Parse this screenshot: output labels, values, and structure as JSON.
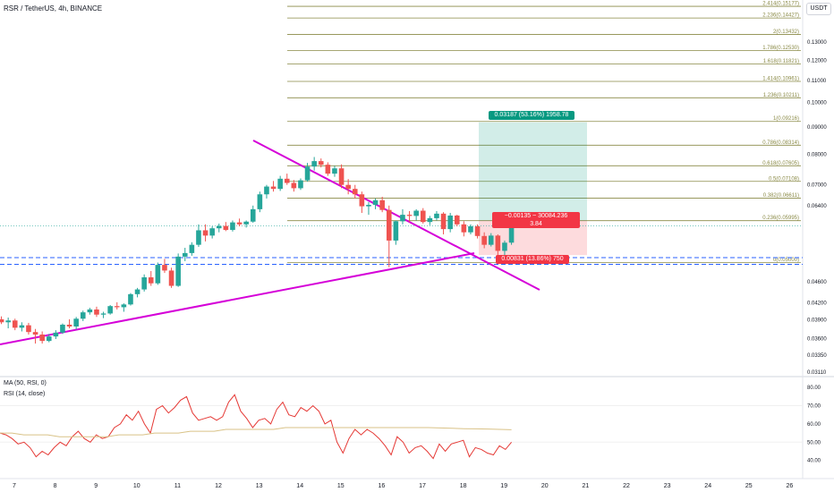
{
  "header": {
    "title": "RSR / TetherUS, 4h, BINANCE"
  },
  "currency_label": "USDT",
  "indicators": {
    "ma": "MA (50, RSI, 0)",
    "rsi": "RSI (14, close)"
  },
  "fib_levels": [
    {
      "ratio": "2.414",
      "price": "0.15177",
      "label": "2.414(0.15177)"
    },
    {
      "ratio": "2.236",
      "price": "0.14427",
      "label": "2.236(0.14427)"
    },
    {
      "ratio": "2",
      "price": "0.13432",
      "label": "2(0.13432)"
    },
    {
      "ratio": "1.786",
      "price": "0.12530",
      "label": "1.786(0.12530)"
    },
    {
      "ratio": "1.618",
      "price": "0.11821",
      "label": "1.618(0.11821)"
    },
    {
      "ratio": "1.414",
      "price": "0.10961",
      "label": "1.414(0.10961)"
    },
    {
      "ratio": "1.236",
      "price": "0.10211",
      "label": "1.236(0.10211)"
    },
    {
      "ratio": "1",
      "price": "0.09216",
      "label": "1(0.09216)"
    },
    {
      "ratio": "0.786",
      "price": "0.08314",
      "label": "0.786(0.08314)"
    },
    {
      "ratio": "0.618",
      "price": "0.07605",
      "label": "0.618(0.07605)"
    },
    {
      "ratio": "0.5",
      "price": "0.07108",
      "label": "0.5(0.07108)"
    },
    {
      "ratio": "0.382",
      "price": "0.06611",
      "label": "0.382(0.06611)"
    },
    {
      "ratio": "0.236",
      "price": "0.05995",
      "label": "0.236(0.05995)"
    },
    {
      "ratio": "0",
      "price": "0.05000",
      "label": "0(0.05000)"
    }
  ],
  "price_axis": [
    "0.13000",
    "0.12000",
    "0.11000",
    "0.10000",
    "0.09000",
    "0.08000",
    "0.07000",
    "0.06400",
    "0.04600",
    "0.04200",
    "0.03900",
    "0.03600",
    "0.03350",
    "0.03110"
  ],
  "price_tags": [
    {
      "text": "0.09182",
      "color": "#089981"
    },
    {
      "text": "0.05995",
      "color": "#131722"
    },
    {
      "text": "0.05860",
      "color": "#089981"
    },
    {
      "text": "01:04:48",
      "color": "#089981"
    },
    {
      "text": "0.05164",
      "color": "#f23645"
    },
    {
      "text": "0.05109",
      "color": "#2962ff"
    },
    {
      "text": "0.04961",
      "color": "#2962ff"
    }
  ],
  "rsi_axis": [
    "80.00",
    "70.00",
    "60.00",
    "50.00",
    "40.00"
  ],
  "time_axis": [
    "7",
    "8",
    "9",
    "10",
    "11",
    "12",
    "13",
    "14",
    "15",
    "16",
    "17",
    "18",
    "19",
    "20",
    "21",
    "22",
    "23",
    "24",
    "25",
    "26"
  ],
  "position": {
    "target_label": "0.03187 (53.16%) 1958.78",
    "stop_label": "0.00831 (13.86%) 750",
    "middle_line1": "−0.00135 ~ 30084.236",
    "middle_line2": "3.84"
  },
  "colors": {
    "up": "#26a69a",
    "down": "#ef5350",
    "trendline": "#d500d8",
    "fib": "#8a8a46",
    "rsi": "#e53935",
    "ma": "#d9c287"
  },
  "chart_data": {
    "type": "candlestick",
    "title": "RSR / TetherUS, 4h, BINANCE",
    "ohlc": [
      [
        0.0391,
        0.0396,
        0.0383,
        0.0386
      ],
      [
        0.0386,
        0.0394,
        0.0376,
        0.0389
      ],
      [
        0.0389,
        0.0392,
        0.0373,
        0.0377
      ],
      [
        0.0377,
        0.0386,
        0.0371,
        0.0381
      ],
      [
        0.0381,
        0.0385,
        0.0366,
        0.037
      ],
      [
        0.037,
        0.0375,
        0.0352,
        0.0366
      ],
      [
        0.0366,
        0.0371,
        0.0352,
        0.0356
      ],
      [
        0.0356,
        0.0367,
        0.0354,
        0.0363
      ],
      [
        0.0363,
        0.0373,
        0.0359,
        0.0369
      ],
      [
        0.0369,
        0.0384,
        0.0367,
        0.0382
      ],
      [
        0.0382,
        0.0391,
        0.0376,
        0.0379
      ],
      [
        0.0379,
        0.0395,
        0.0374,
        0.0392
      ],
      [
        0.0392,
        0.0406,
        0.0388,
        0.0403
      ],
      [
        0.0403,
        0.0411,
        0.0399,
        0.0408
      ],
      [
        0.0408,
        0.0413,
        0.0395,
        0.0399
      ],
      [
        0.0399,
        0.0404,
        0.0393,
        0.0401
      ],
      [
        0.0401,
        0.0416,
        0.0399,
        0.0414
      ],
      [
        0.0414,
        0.0421,
        0.0408,
        0.0412
      ],
      [
        0.0412,
        0.0419,
        0.0404,
        0.0417
      ],
      [
        0.0417,
        0.0438,
        0.0415,
        0.0436
      ],
      [
        0.0436,
        0.0448,
        0.043,
        0.0445
      ],
      [
        0.0445,
        0.0475,
        0.0441,
        0.0469
      ],
      [
        0.0469,
        0.0482,
        0.0452,
        0.0457
      ],
      [
        0.0457,
        0.05,
        0.0454,
        0.0495
      ],
      [
        0.0495,
        0.0508,
        0.0478,
        0.0483
      ],
      [
        0.0483,
        0.0489,
        0.0448,
        0.0452
      ],
      [
        0.0452,
        0.052,
        0.045,
        0.0513
      ],
      [
        0.0513,
        0.0533,
        0.0503,
        0.0521
      ],
      [
        0.0521,
        0.0546,
        0.0515,
        0.054
      ],
      [
        0.054,
        0.059,
        0.0535,
        0.0575
      ],
      [
        0.0575,
        0.059,
        0.0548,
        0.0562
      ],
      [
        0.0562,
        0.0585,
        0.0555,
        0.058
      ],
      [
        0.058,
        0.0592,
        0.057,
        0.0586
      ],
      [
        0.0586,
        0.0596,
        0.0573,
        0.0576
      ],
      [
        0.0576,
        0.06,
        0.0572,
        0.0595
      ],
      [
        0.0595,
        0.0605,
        0.0585,
        0.059
      ],
      [
        0.059,
        0.06,
        0.0582,
        0.0597
      ],
      [
        0.0597,
        0.064,
        0.0594,
        0.063
      ],
      [
        0.063,
        0.068,
        0.0622,
        0.0672
      ],
      [
        0.0672,
        0.07,
        0.066,
        0.0695
      ],
      [
        0.0695,
        0.0712,
        0.068,
        0.0688
      ],
      [
        0.0688,
        0.0728,
        0.0682,
        0.0719
      ],
      [
        0.0719,
        0.0735,
        0.07,
        0.0706
      ],
      [
        0.0706,
        0.0715,
        0.068,
        0.069
      ],
      [
        0.069,
        0.072,
        0.0685,
        0.0714
      ],
      [
        0.0714,
        0.077,
        0.071,
        0.0758
      ],
      [
        0.0758,
        0.079,
        0.0745,
        0.0776
      ],
      [
        0.0776,
        0.0785,
        0.0755,
        0.0764
      ],
      [
        0.0764,
        0.0772,
        0.0728,
        0.0735
      ],
      [
        0.0735,
        0.076,
        0.0725,
        0.0752
      ],
      [
        0.0752,
        0.0765,
        0.069,
        0.07
      ],
      [
        0.07,
        0.0718,
        0.0672,
        0.0688
      ],
      [
        0.0688,
        0.07,
        0.066,
        0.0672
      ],
      [
        0.0672,
        0.068,
        0.062,
        0.0638
      ],
      [
        0.0638,
        0.065,
        0.0615,
        0.0642
      ],
      [
        0.0642,
        0.066,
        0.063,
        0.0655
      ],
      [
        0.0655,
        0.0665,
        0.0622,
        0.0628
      ],
      [
        0.0628,
        0.064,
        0.049,
        0.055
      ],
      [
        0.055,
        0.06,
        0.054,
        0.0598
      ],
      [
        0.0598,
        0.063,
        0.059,
        0.0615
      ],
      [
        0.0615,
        0.0625,
        0.0596,
        0.0612
      ],
      [
        0.0612,
        0.063,
        0.06,
        0.0626
      ],
      [
        0.0626,
        0.0633,
        0.0592,
        0.0596
      ],
      [
        0.0596,
        0.0612,
        0.0588,
        0.0606
      ],
      [
        0.0606,
        0.0625,
        0.06,
        0.0618
      ],
      [
        0.0618,
        0.0622,
        0.0565,
        0.0578
      ],
      [
        0.0578,
        0.062,
        0.057,
        0.0613
      ],
      [
        0.0613,
        0.0615,
        0.0585,
        0.059
      ],
      [
        0.059,
        0.0598,
        0.056,
        0.057
      ],
      [
        0.057,
        0.059,
        0.0565,
        0.0585
      ],
      [
        0.0585,
        0.059,
        0.0555,
        0.0561
      ],
      [
        0.0561,
        0.057,
        0.0532,
        0.054
      ],
      [
        0.054,
        0.0568,
        0.0536,
        0.0562
      ],
      [
        0.0562,
        0.0565,
        0.051,
        0.0526
      ],
      [
        0.0526,
        0.055,
        0.051,
        0.0545
      ],
      [
        0.0545,
        0.06,
        0.054,
        0.0586
      ]
    ],
    "rsi": [
      55,
      54,
      52,
      49,
      50,
      47,
      42,
      45,
      43,
      47,
      50,
      48,
      53,
      56,
      52,
      50,
      54,
      52,
      53,
      58,
      60,
      65,
      62,
      67,
      60,
      55,
      68,
      70,
      66,
      69,
      73,
      75,
      66,
      62,
      63,
      64,
      62,
      64,
      72,
      76,
      67,
      63,
      58,
      62,
      63,
      60,
      68,
      72,
      65,
      64,
      69,
      67,
      70,
      67,
      60,
      62,
      50,
      44,
      52,
      57,
      54,
      57,
      55,
      52,
      48,
      43,
      53,
      50,
      44,
      47,
      48,
      45,
      41,
      49,
      45,
      49,
      50,
      51,
      42,
      47,
      46,
      44,
      43,
      48,
      46,
      50
    ],
    "ma_rsi": [
      55,
      55,
      54,
      54,
      54,
      53,
      53,
      53,
      53,
      53,
      54,
      54,
      54,
      55,
      55,
      55,
      56,
      56,
      56,
      57,
      57,
      57,
      57,
      57,
      58,
      58,
      58,
      58,
      58,
      58,
      58,
      58,
      58,
      58,
      58,
      58,
      58,
      57.8,
      57.6,
      57.4,
      57.3,
      57.2,
      57.0,
      56.8
    ],
    "fib_prices": [
      0.15177,
      0.14427,
      0.13432,
      0.1253,
      0.11821,
      0.10961,
      0.10211,
      0.09216,
      0.08314,
      0.07605,
      0.07108,
      0.06611,
      0.05995,
      0.05
    ],
    "x_start_day": 6.6,
    "bars_per_day": 6,
    "price_log_scale": true,
    "rsi_range": [
      30,
      85
    ]
  }
}
